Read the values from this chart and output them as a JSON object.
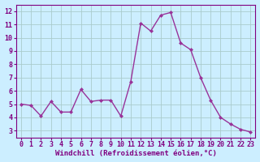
{
  "x": [
    0,
    1,
    2,
    3,
    4,
    5,
    6,
    7,
    8,
    9,
    10,
    11,
    12,
    13,
    14,
    15,
    16,
    17,
    18,
    19,
    20,
    21,
    22,
    23
  ],
  "y": [
    5.0,
    4.9,
    4.1,
    5.2,
    4.4,
    4.4,
    6.1,
    5.2,
    5.3,
    5.3,
    4.1,
    6.7,
    11.1,
    10.5,
    11.7,
    11.9,
    9.6,
    9.1,
    7.0,
    5.3,
    4.0,
    3.5,
    3.1,
    2.9
  ],
  "line_color": "#993399",
  "marker": "D",
  "marker_size": 2.0,
  "bg_color": "#cceeff",
  "grid_color": "#aacccc",
  "xlabel": "Windchill (Refroidissement éolien,°C)",
  "xlim": [
    -0.5,
    23.5
  ],
  "ylim": [
    2.5,
    12.5
  ],
  "yticks": [
    3,
    4,
    5,
    6,
    7,
    8,
    9,
    10,
    11,
    12
  ],
  "xticks": [
    0,
    1,
    2,
    3,
    4,
    5,
    6,
    7,
    8,
    9,
    10,
    11,
    12,
    13,
    14,
    15,
    16,
    17,
    18,
    19,
    20,
    21,
    22,
    23
  ],
  "xlabel_fontsize": 6.5,
  "tick_fontsize": 6.0,
  "line_width": 1.0,
  "text_color": "#800080",
  "spine_color": "#800080"
}
